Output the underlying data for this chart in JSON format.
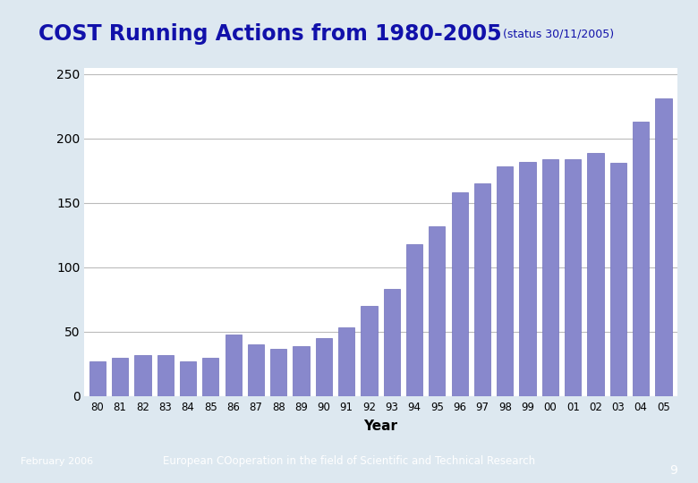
{
  "title_main": "COST Running Actions from 1980-2005",
  "title_sub": "(status 30/11/2005)",
  "xlabel": "Year",
  "years": [
    "80",
    "81",
    "82",
    "83",
    "84",
    "85",
    "86",
    "87",
    "88",
    "89",
    "90",
    "91",
    "92",
    "93",
    "94",
    "95",
    "96",
    "97",
    "98",
    "99",
    "00",
    "01",
    "02",
    "03",
    "04",
    "05"
  ],
  "values": [
    27,
    30,
    32,
    32,
    27,
    30,
    48,
    40,
    37,
    39,
    45,
    53,
    70,
    83,
    118,
    132,
    158,
    165,
    178,
    182,
    184,
    184,
    189,
    181,
    213,
    231
  ],
  "bar_color": "#8888cc",
  "bar_edge_color": "#7070bb",
  "yticks": [
    0,
    50,
    100,
    150,
    200,
    250
  ],
  "ylim": [
    0,
    255
  ],
  "bg_color": "#ffffff",
  "grid_color": "#bbbbbb",
  "title_color": "#1111aa",
  "title_sub_color": "#333399",
  "left_panel_color": "#6699bb",
  "footer_bg": "#4477aa",
  "footer_text": "February 2006",
  "footer_center": "European COoperation in the field of Scientific and Technical Research",
  "page_number": "9",
  "fig_bg": "#dde8f0"
}
